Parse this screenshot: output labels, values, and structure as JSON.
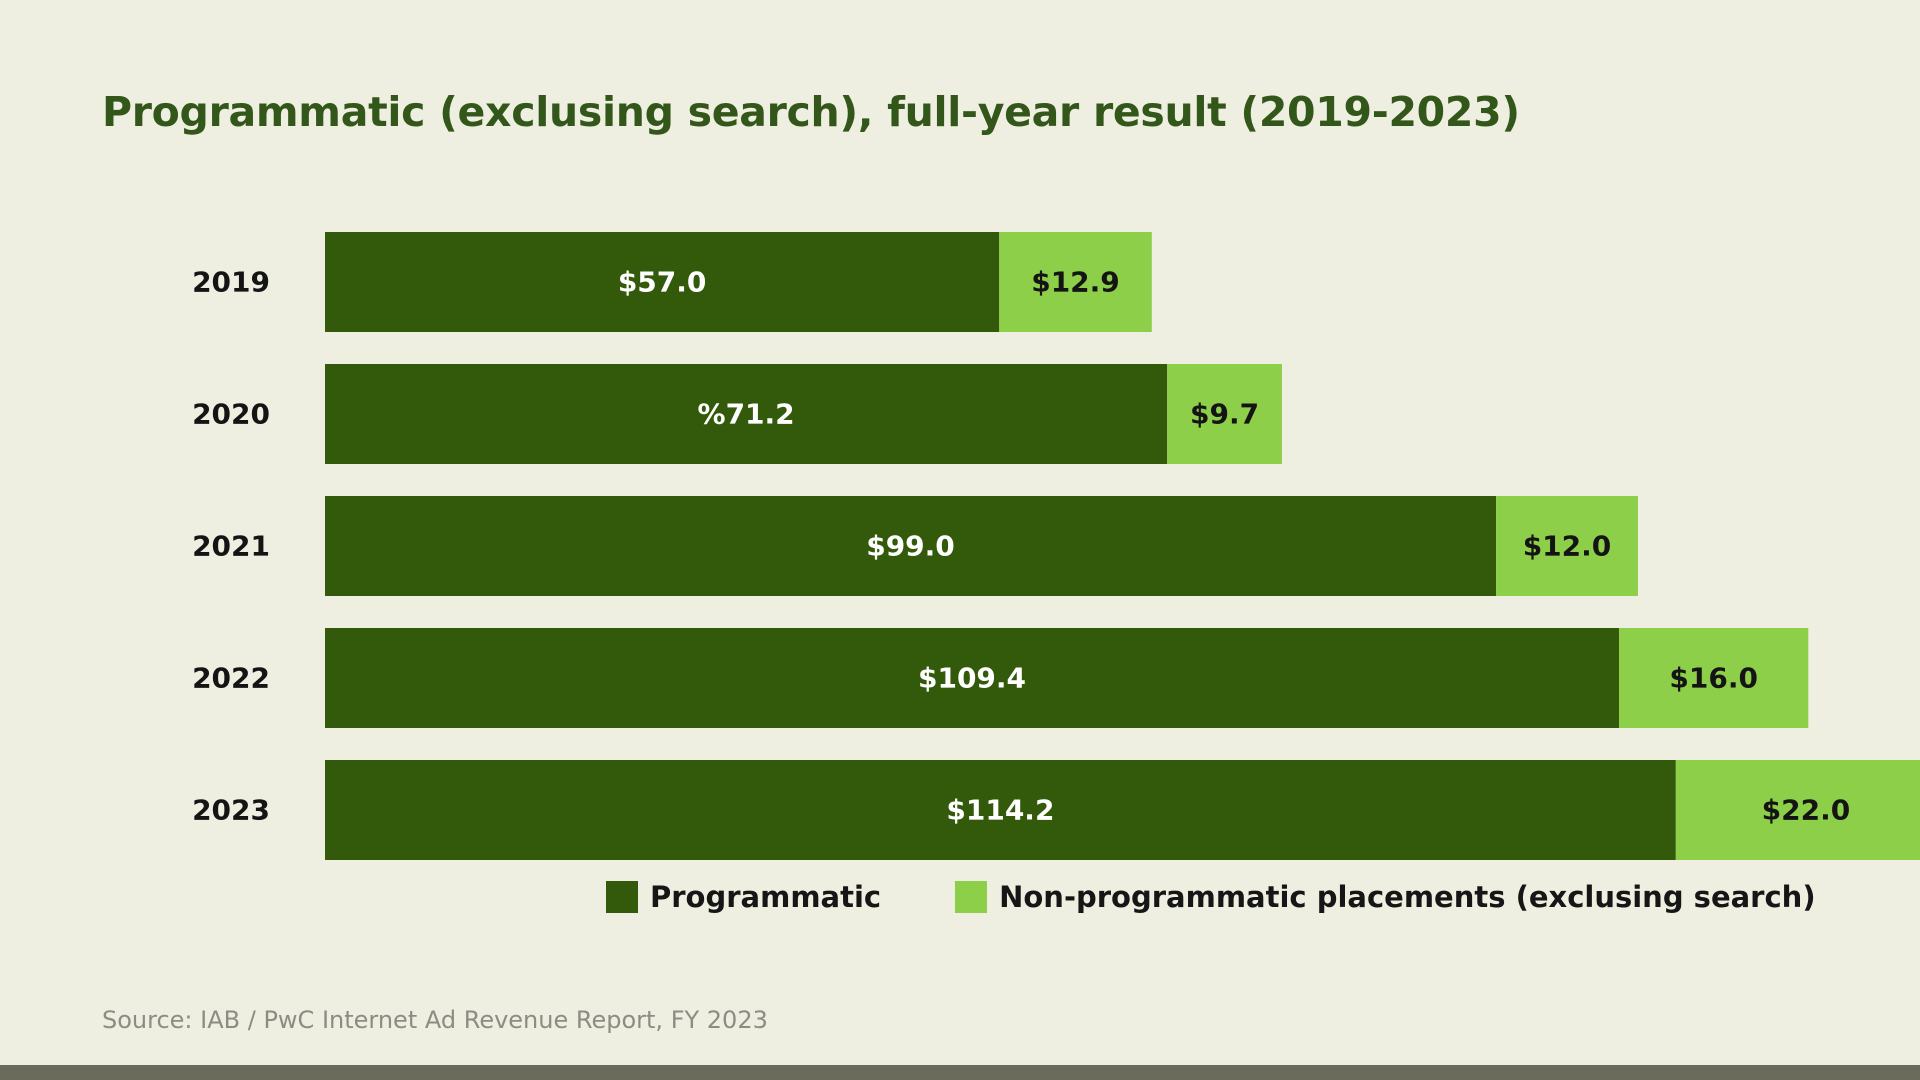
{
  "title": "Programmatic (exclusing search), full-year result (2019-2023)",
  "source": "Source: IAB / PwC Internet Ad Revenue Report, FY 2023",
  "colors": {
    "programmatic": "#335a0a",
    "non_programmatic": "#8ecf49",
    "background": "#eeefe0",
    "title": "#33571a"
  },
  "chart_data": {
    "type": "bar",
    "orientation": "horizontal",
    "stacked": true,
    "categories": [
      "2019",
      "2020",
      "2021",
      "2022",
      "2023"
    ],
    "series": [
      {
        "name": "Programmatic",
        "values": [
          57.0,
          71.2,
          99.0,
          109.4,
          114.2
        ],
        "labels": [
          "$57.0",
          "%71.2",
          "$99.0",
          "$109.4",
          "$114.2"
        ]
      },
      {
        "name": "Non-programmatic placements (exclusing search)",
        "values": [
          12.9,
          9.7,
          12.0,
          16.0,
          22.0
        ],
        "labels": [
          "$12.9",
          "$9.7",
          "$12.0",
          "$16.0",
          "$22.0"
        ]
      }
    ],
    "title": "Programmatic (exclusing search), full-year result (2019-2023)",
    "xlabel": "",
    "ylabel": "",
    "xlim": [
      0,
      140
    ],
    "grid": false,
    "legend": "bottom"
  }
}
